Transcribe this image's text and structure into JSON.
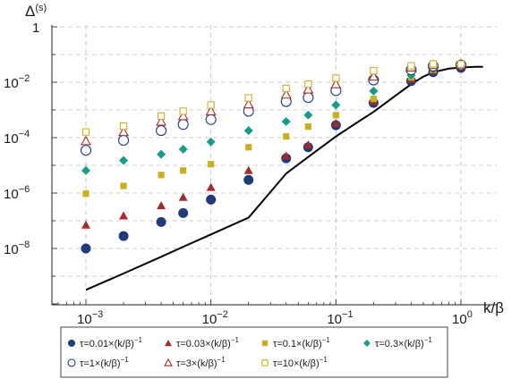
{
  "chart_data": {
    "type": "scatter",
    "title": "",
    "xlabel": "k/β",
    "ylabel": "Δ(s)",
    "xscale": "log",
    "yscale": "log",
    "xlim": [
      0.0006,
      1.6
    ],
    "ylim": [
      1e-10,
      1
    ],
    "grid": true,
    "legend_position": "bottom",
    "x_tick_labels": [
      {
        "value": 0.001,
        "base": "10",
        "exp": "−3"
      },
      {
        "value": 0.01,
        "base": "10",
        "exp": "−2"
      },
      {
        "value": 0.1,
        "base": "10",
        "exp": "−1"
      },
      {
        "value": 1,
        "base": "10",
        "exp": "0"
      }
    ],
    "y_tick_labels": [
      {
        "value": 1,
        "base": "1",
        "exp": ""
      },
      {
        "value": 0.01,
        "base": "10",
        "exp": "−2"
      },
      {
        "value": 0.0001,
        "base": "10",
        "exp": "−4"
      },
      {
        "value": 1e-06,
        "base": "10",
        "exp": "−6"
      },
      {
        "value": 1e-08,
        "base": "10",
        "exp": "−8"
      }
    ],
    "x": [
      0.001,
      0.002,
      0.004,
      0.006,
      0.01,
      0.02,
      0.04,
      0.06,
      0.1,
      0.2,
      0.4,
      0.6,
      1.0
    ],
    "series": [
      {
        "name": "τ=0.01×(k/β)⁻¹",
        "legend_text": "τ=0.01×(k/β)",
        "legend_exp": "−1",
        "color": "#1f3b7a",
        "marker": "circle-filled",
        "y": [
          1e-08,
          2.8e-08,
          9e-08,
          1.9e-07,
          5.8e-07,
          3e-06,
          1.8e-05,
          4.5e-05,
          0.00028,
          0.0018,
          0.011,
          0.023,
          0.033
        ]
      },
      {
        "name": "τ=0.03×(k/β)⁻¹",
        "legend_text": "τ=0.03×(k/β)",
        "legend_exp": "−1",
        "color": "#a52a2a",
        "marker": "triangle-filled",
        "y": [
          7e-08,
          1.5e-07,
          3.5e-07,
          7e-07,
          1.6e-06,
          6.5e-06,
          2.2e-05,
          5.5e-05,
          0.00033,
          0.002,
          0.013,
          0.026,
          0.036
        ]
      },
      {
        "name": "τ=0.1×(k/β)⁻¹",
        "legend_text": "τ=0.1×(k/β)",
        "legend_exp": "−1",
        "color": "#c9b020",
        "marker": "square-filled",
        "y": [
          9.5e-07,
          1.8e-06,
          4.5e-06,
          6.5e-06,
          1.1e-05,
          4.5e-05,
          0.00011,
          0.00025,
          0.00065,
          0.0025,
          0.015,
          0.028,
          0.038
        ]
      },
      {
        "name": "τ=0.3×(k/β)⁻¹",
        "legend_text": "τ=0.3×(k/β)",
        "legend_exp": "−1",
        "color": "#1a9a8a",
        "marker": "diamond-filled",
        "y": [
          6.5e-06,
          1.5e-05,
          2.5e-05,
          3.8e-05,
          7e-05,
          0.00018,
          0.00038,
          0.00065,
          0.0015,
          0.0048,
          0.018,
          0.03,
          0.04
        ]
      },
      {
        "name": "τ=1×(k/β)⁻¹",
        "legend_text": "τ=1×(k/β)",
        "legend_exp": "−1",
        "color": "#1f3b7a",
        "marker": "circle-open",
        "y": [
          3.5e-05,
          8e-05,
          0.00018,
          0.0003,
          0.00045,
          0.0009,
          0.002,
          0.0028,
          0.005,
          0.012,
          0.028,
          0.038,
          0.042
        ]
      },
      {
        "name": "τ=3×(k/β)⁻¹",
        "legend_text": "τ=3×(k/β)",
        "legend_exp": "−1",
        "color": "#a52a2a",
        "marker": "triangle-open",
        "y": [
          7.5e-05,
          0.00016,
          0.00038,
          0.0006,
          0.0009,
          0.0016,
          0.0036,
          0.0055,
          0.0085,
          0.016,
          0.034,
          0.042,
          0.044
        ]
      },
      {
        "name": "τ=10×(k/β)⁻¹",
        "legend_text": "τ=10×(k/β)",
        "legend_exp": "−1",
        "color": "#c9b020",
        "marker": "square-open",
        "y": [
          0.00016,
          0.00026,
          0.0006,
          0.0009,
          0.0015,
          0.0027,
          0.006,
          0.0085,
          0.014,
          0.026,
          0.039,
          0.046,
          0.045
        ]
      }
    ],
    "reference_curve": {
      "color": "#000000",
      "x": [
        0.001,
        0.002,
        0.004,
        0.006,
        0.01,
        0.02,
        0.04,
        0.06,
        0.1,
        0.15,
        0.2,
        0.3,
        0.4,
        0.5,
        0.6,
        0.8,
        1.0,
        1.3,
        1.5
      ],
      "y": [
        3.2e-10,
        1.25e-09,
        5e-09,
        1.15e-08,
        3.2e-08,
        1.3e-07,
        5.1e-06,
        2e-05,
        0.00011,
        0.00037,
        0.00085,
        0.0033,
        0.0085,
        0.016,
        0.023,
        0.031,
        0.034,
        0.036,
        0.036
      ]
    }
  }
}
